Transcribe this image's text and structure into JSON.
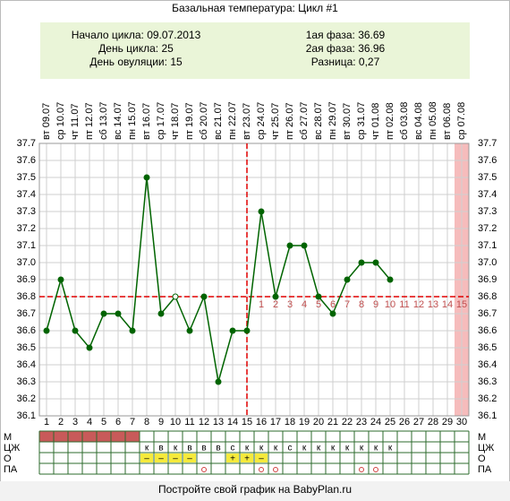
{
  "chart_data": {
    "type": "line",
    "title": "Базальная температура: Цикл #1",
    "info_left": [
      {
        "label": "Начало цикла:",
        "value": "09.07.2013"
      },
      {
        "label": "День цикла:",
        "value": "25"
      },
      {
        "label": "День овуляции:",
        "value": "15"
      }
    ],
    "info_right": [
      {
        "label": "1ая фаза:",
        "value": "36.69"
      },
      {
        "label": "2ая фаза:",
        "value": "36.96"
      },
      {
        "label": "Разница:",
        "value": "0,27"
      }
    ],
    "categories": [
      1,
      2,
      3,
      4,
      5,
      6,
      7,
      8,
      9,
      10,
      11,
      12,
      13,
      14,
      15,
      16,
      17,
      18,
      19,
      20,
      21,
      22,
      23,
      24,
      25,
      26,
      27,
      28,
      29,
      30
    ],
    "weekdays": [
      "вт",
      "ср",
      "чт",
      "пт",
      "сб",
      "вс",
      "пн",
      "вт",
      "ср",
      "чт",
      "пт",
      "сб",
      "вс",
      "пн",
      "вт",
      "ср",
      "чт",
      "пт",
      "сб",
      "вс",
      "пн",
      "вт",
      "ср",
      "чт",
      "пт",
      "сб",
      "вс",
      "пн",
      "вт",
      "ср"
    ],
    "dates": [
      "09.07",
      "10.07",
      "11.07",
      "12.07",
      "13.07",
      "14.07",
      "15.07",
      "16.07",
      "17.07",
      "18.07",
      "19.07",
      "20.07",
      "21.07",
      "22.07",
      "23.07",
      "24.07",
      "25.07",
      "26.07",
      "27.07",
      "28.07",
      "29.07",
      "30.07",
      "31.07",
      "01.08",
      "02.08",
      "03.08",
      "04.08",
      "05.08",
      "06.08",
      "07.08"
    ],
    "values": [
      36.6,
      36.9,
      36.6,
      36.5,
      36.7,
      36.7,
      36.6,
      37.5,
      36.7,
      36.8,
      36.6,
      36.8,
      36.3,
      36.6,
      36.6,
      37.3,
      36.8,
      37.1,
      37.1,
      36.8,
      36.7,
      36.9,
      37.0,
      37.0,
      36.9,
      null,
      null,
      null,
      null,
      null
    ],
    "color": "#006400",
    "hollow_days": [
      10
    ],
    "coverline": 36.8,
    "ovulation_day": 15,
    "highlighted_days": [
      30
    ],
    "phase_days": [
      null,
      null,
      null,
      null,
      null,
      null,
      null,
      null,
      null,
      null,
      null,
      null,
      null,
      null,
      null,
      1,
      2,
      3,
      4,
      5,
      6,
      7,
      8,
      9,
      10,
      11,
      12,
      13,
      14,
      15
    ],
    "ylim": [
      36.1,
      37.7
    ],
    "yticks": [
      36.1,
      36.2,
      36.3,
      36.4,
      36.5,
      36.6,
      36.7,
      36.8,
      36.9,
      {
        "value": 37,
        "label": "37.0"
      },
      37.1,
      37.2,
      37.3,
      37.4,
      37.5,
      37.6,
      37.7
    ],
    "grid": true,
    "rows": [
      {
        "label": "М",
        "cells": [
          true,
          true,
          true,
          true,
          true,
          true,
          true,
          false,
          false,
          false,
          false,
          false,
          false,
          false,
          false,
          false,
          false,
          false,
          false,
          false,
          false,
          false,
          false,
          false,
          false,
          false,
          false,
          false,
          false,
          false
        ]
      },
      {
        "label": "ЦЖ",
        "cells": [
          null,
          null,
          null,
          null,
          null,
          null,
          null,
          "к",
          "в",
          "к",
          "в",
          "в",
          "в",
          "с",
          "к",
          "к",
          "к",
          "с",
          "к",
          "к",
          "к",
          "к",
          "к",
          "к",
          "к",
          null,
          null,
          null,
          null,
          null
        ]
      },
      {
        "label": "О",
        "cells": [
          null,
          null,
          null,
          null,
          null,
          null,
          null,
          "–",
          "–",
          "–",
          "–",
          null,
          null,
          "+",
          "+",
          "–",
          null,
          null,
          null,
          null,
          null,
          null,
          null,
          null,
          null,
          null,
          null,
          null,
          null,
          null
        ]
      },
      {
        "label": "ПА",
        "cells": [
          false,
          false,
          false,
          false,
          false,
          false,
          false,
          false,
          false,
          false,
          false,
          true,
          false,
          false,
          false,
          true,
          true,
          false,
          false,
          false,
          false,
          false,
          true,
          true,
          false,
          false,
          false,
          false,
          false,
          false
        ]
      }
    ],
    "footer": "Постройте свой график на BabyPlan.ru"
  }
}
